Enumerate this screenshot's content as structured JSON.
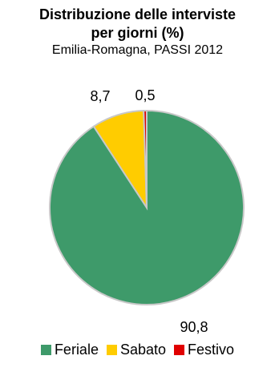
{
  "chart_data": {
    "type": "pie",
    "title_lines": [
      "Distribuzione delle interviste",
      "per giorni (%)"
    ],
    "subtitle": "Emilia-Romagna, PASSI 2012",
    "slices": [
      {
        "name": "Feriale",
        "value": 90.8,
        "label": "90,8",
        "color": "#3E9A6A"
      },
      {
        "name": "Sabato",
        "value": 8.7,
        "label": "8,7",
        "color": "#FFCC00"
      },
      {
        "name": "Festivo",
        "value": 0.5,
        "label": "0,5",
        "color": "#E00000"
      }
    ],
    "legend_placement": "bottom"
  }
}
